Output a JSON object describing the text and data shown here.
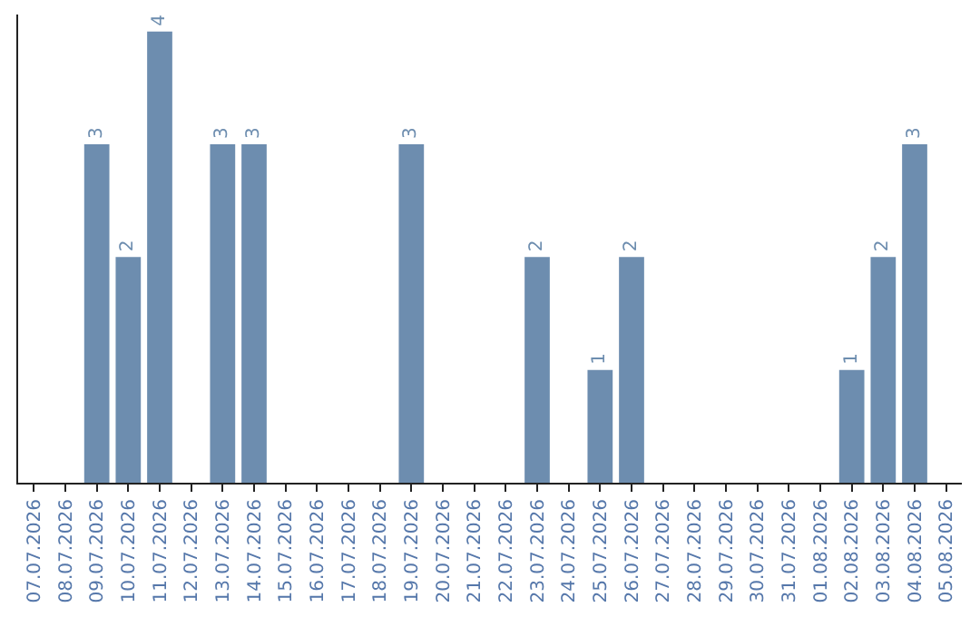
{
  "chart_data": {
    "type": "bar",
    "categories": [
      "07.07.2026",
      "08.07.2026",
      "09.07.2026",
      "10.07.2026",
      "11.07.2026",
      "12.07.2026",
      "13.07.2026",
      "14.07.2026",
      "15.07.2026",
      "16.07.2026",
      "17.07.2026",
      "18.07.2026",
      "19.07.2026",
      "20.07.2026",
      "21.07.2026",
      "22.07.2026",
      "23.07.2026",
      "24.07.2026",
      "25.07.2026",
      "26.07.2026",
      "27.07.2026",
      "28.07.2026",
      "29.07.2026",
      "30.07.2026",
      "31.07.2026",
      "01.08.2026",
      "02.08.2026",
      "03.08.2026",
      "04.08.2026",
      "05.08.2026"
    ],
    "values": [
      0,
      0,
      3,
      2,
      4,
      0,
      3,
      3,
      0,
      0,
      0,
      0,
      3,
      0,
      0,
      0,
      2,
      0,
      1,
      2,
      0,
      0,
      0,
      0,
      0,
      0,
      1,
      2,
      3,
      0
    ],
    "value_labels": [
      null,
      null,
      "3",
      "2",
      "4",
      null,
      "3",
      "3",
      null,
      null,
      null,
      null,
      "3",
      null,
      null,
      null,
      "2",
      null,
      "1",
      "2",
      null,
      null,
      null,
      null,
      null,
      null,
      "1",
      "2",
      "3",
      null
    ],
    "color": "#6d8daf",
    "ylim": [
      0,
      4.15
    ]
  }
}
